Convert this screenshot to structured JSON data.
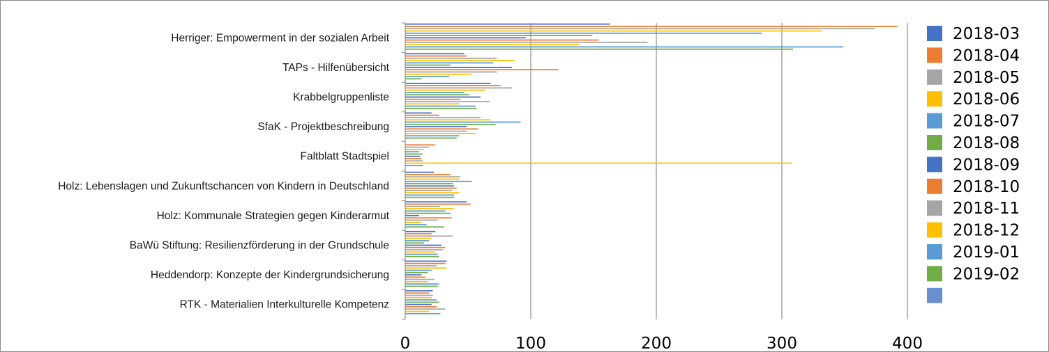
{
  "chart_data": {
    "type": "bar",
    "orientation": "horizontal",
    "categories": [
      "Herriger: Empowerment in der sozialen Arbeit",
      "TAPs - Hilfenübersicht",
      "Krabbelgruppenliste",
      "SfaK - Projektbeschreibung",
      "Faltblatt Stadtspiel",
      "Holz: Lebenslagen und Zukunftschancen von Kindern in Deutschland",
      "Holz: Kommunale Strategien gegen Kinderarmut",
      "BaWü Stiftung: Resilienzförderung in der Grundschule",
      "Heddendorp: Konzepte der Kindergrundsicherung",
      "RTK - Materialien Interkulturelle Kompetenz"
    ],
    "series": [
      {
        "name": "2018-03",
        "color": "#4472c4",
        "values": [
          163,
          47,
          68,
          21,
          0,
          23,
          49,
          24,
          33,
          22
        ]
      },
      {
        "name": "2018-04",
        "color": "#ed7d31",
        "values": [
          392,
          49,
          76,
          27,
          24,
          36,
          52,
          21,
          32,
          19
        ]
      },
      {
        "name": "2018-05",
        "color": "#a5a5a5",
        "values": [
          374,
          73,
          85,
          60,
          19,
          44,
          28,
          38,
          25,
          22
        ]
      },
      {
        "name": "2018-06",
        "color": "#ffc000",
        "values": [
          332,
          87,
          64,
          68,
          15,
          43,
          39,
          21,
          33,
          21
        ]
      },
      {
        "name": "2018-07",
        "color": "#5b9bd5",
        "values": [
          284,
          70,
          47,
          92,
          11,
          53,
          32,
          19,
          21,
          25
        ]
      },
      {
        "name": "2018-08",
        "color": "#70ad47",
        "values": [
          149,
          36,
          51,
          72,
          14,
          38,
          36,
          15,
          18,
          27
        ]
      },
      {
        "name": "2018-09",
        "color": "#4472c4",
        "values": [
          96,
          85,
          60,
          49,
          12,
          39,
          11,
          29,
          13,
          21
        ]
      },
      {
        "name": "2018-10",
        "color": "#ed7d31",
        "values": [
          154,
          122,
          44,
          58,
          13,
          41,
          37,
          32,
          16,
          25
        ]
      },
      {
        "name": "2018-11",
        "color": "#a5a5a5",
        "values": [
          193,
          73,
          67,
          49,
          14,
          37,
          26,
          30,
          23,
          32
        ]
      },
      {
        "name": "2018-12",
        "color": "#ffc000",
        "values": [
          139,
          53,
          43,
          56,
          308,
          43,
          13,
          24,
          18,
          19
        ]
      },
      {
        "name": "2019-01",
        "color": "#5b9bd5",
        "values": [
          349,
          35,
          56,
          43,
          14,
          39,
          17,
          26,
          27,
          28
        ]
      },
      {
        "name": "2019-02",
        "color": "#70ad47",
        "values": [
          309,
          13,
          57,
          41,
          0,
          39,
          31,
          27,
          26,
          0
        ]
      },
      {
        "name": "",
        "color": "#6a8fd0",
        "values": [
          0,
          0,
          0,
          0,
          0,
          0,
          0,
          0,
          0,
          0
        ]
      }
    ],
    "xlim": [
      0,
      400
    ],
    "xticks": [
      0,
      100,
      200,
      300,
      400
    ],
    "grid": true,
    "legend": "right",
    "title": "",
    "xlabel": "",
    "ylabel": ""
  }
}
